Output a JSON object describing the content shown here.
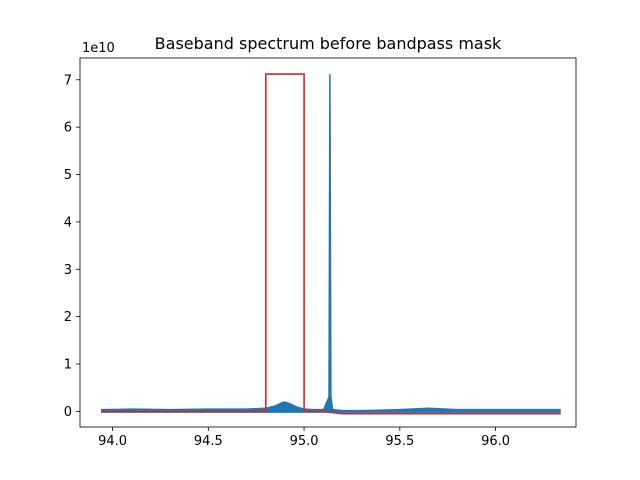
{
  "chart_data": {
    "type": "line",
    "title": "Baseband spectrum before bandpass mask",
    "xlabel": "",
    "ylabel": "",
    "y_offset_label": "1e10",
    "xlim": [
      93.83,
      96.42
    ],
    "ylim": [
      -0.33,
      7.46
    ],
    "x_ticks": [
      94.0,
      94.5,
      95.0,
      95.5,
      96.0
    ],
    "x_tick_labels": [
      "94.0",
      "94.5",
      "95.0",
      "95.5",
      "96.0"
    ],
    "y_ticks": [
      0,
      1,
      2,
      3,
      4,
      5,
      6,
      7
    ],
    "y_tick_labels": [
      "0",
      "1",
      "2",
      "3",
      "4",
      "5",
      "6",
      "7"
    ],
    "grid": false,
    "legend": "none",
    "series": [
      {
        "color": "#1f77b4",
        "description": "spectrum",
        "x": [
          93.94,
          94.1,
          94.3,
          94.5,
          94.7,
          94.8,
          94.85,
          94.88,
          94.9,
          94.93,
          94.96,
          95.0,
          95.05,
          95.1,
          95.13,
          95.135,
          95.14,
          95.15,
          95.2,
          95.3,
          95.5,
          95.65,
          95.8,
          96.0,
          96.2,
          96.34
        ],
        "y": [
          0.02,
          0.03,
          0.02,
          0.03,
          0.03,
          0.05,
          0.1,
          0.16,
          0.18,
          0.14,
          0.08,
          0.03,
          0.02,
          0.02,
          0.3,
          7.12,
          0.3,
          0.02,
          0.0,
          0.0,
          0.02,
          0.05,
          0.02,
          0.02,
          0.02,
          0.02
        ]
      },
      {
        "color": "#d62728",
        "description": "bandpass mask",
        "x": [
          93.94,
          94.8,
          94.8,
          95.0,
          95.0,
          95.1,
          95.2,
          96.34
        ],
        "y": [
          0.0,
          0.0,
          7.12,
          7.12,
          0.0,
          0.0,
          -0.05,
          -0.05
        ]
      }
    ]
  }
}
